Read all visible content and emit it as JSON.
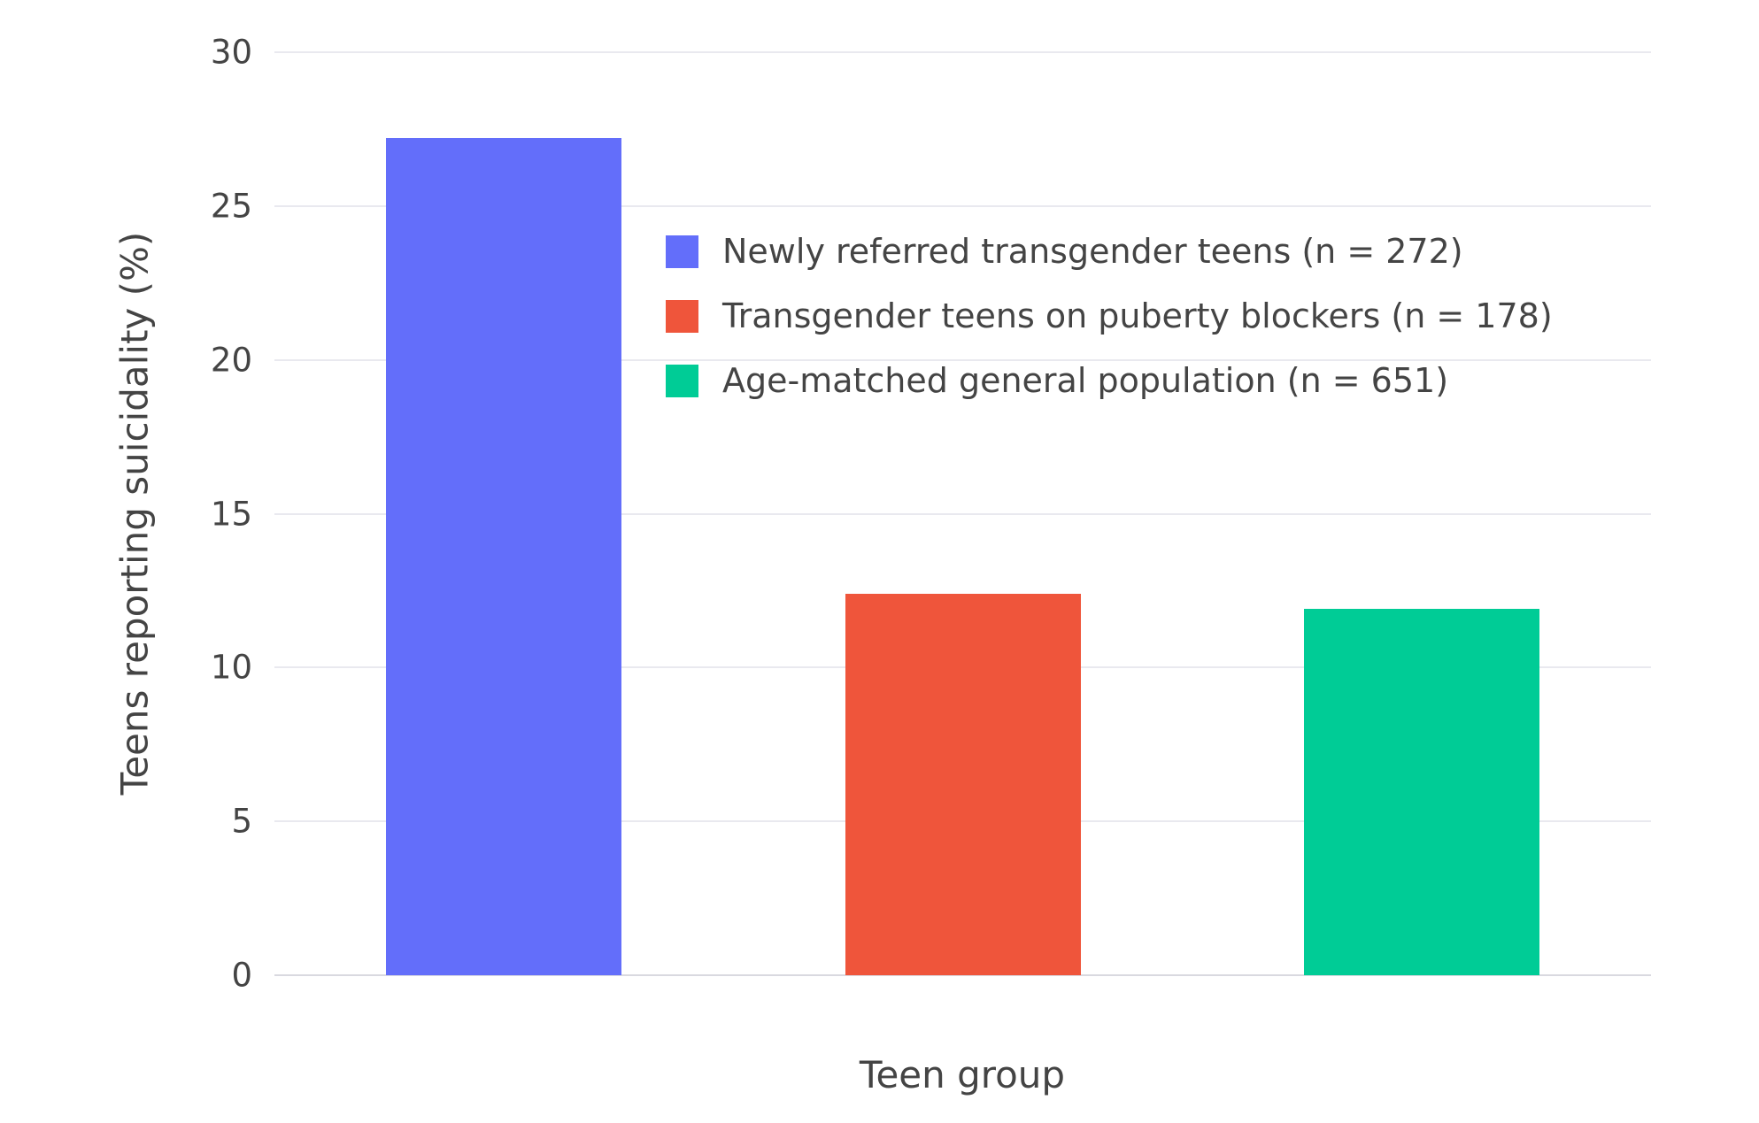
{
  "chart_data": {
    "type": "bar",
    "title": "",
    "xlabel": "Teen group",
    "ylabel": "Teens reporting suicidality (%)",
    "ylim": [
      0,
      30
    ],
    "yticks": [
      0,
      5,
      10,
      15,
      20,
      25,
      30
    ],
    "grid": true,
    "legend_position": "inside-top-center",
    "categories": [
      "Newly referred transgender teens (n = 272)",
      "Transgender teens on puberty blockers (n = 178)",
      "Age-matched general population (n = 651)"
    ],
    "series": [
      {
        "name": "Newly referred transgender teens (n = 272)",
        "value": 27.2,
        "color": "#636EFA"
      },
      {
        "name": "Transgender teens on puberty blockers (n = 178)",
        "value": 12.4,
        "color": "#EF553B"
      },
      {
        "name": "Age-matched general population (n = 651)",
        "value": 11.9,
        "color": "#00CC96"
      }
    ]
  }
}
